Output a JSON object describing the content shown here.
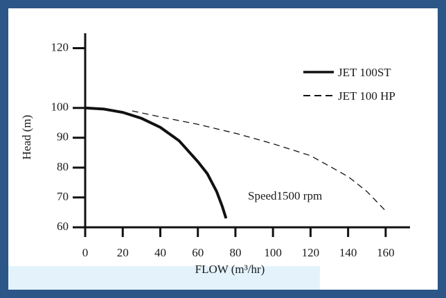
{
  "chart_data": {
    "type": "line",
    "y_label": "Head (m)",
    "x_label": "FLOW (m³/hr)",
    "annotation": "Speed1500 rpm",
    "xlim": [
      0,
      170
    ],
    "xticks": [
      0,
      20,
      40,
      60,
      80,
      100,
      120,
      140,
      160
    ],
    "ylim": [
      60,
      125
    ],
    "yticks": [
      60,
      70,
      80,
      90,
      100,
      120
    ],
    "legend": "upper right",
    "series": [
      {
        "name": "JET 100ST",
        "color": "#111111",
        "style": "solid",
        "x": [
          0,
          10,
          20,
          30,
          40,
          50,
          60,
          65,
          70,
          73,
          75
        ],
        "values": [
          100,
          99.6,
          98.5,
          96.5,
          93.5,
          89,
          82,
          78,
          72,
          67,
          63
        ]
      },
      {
        "name": "JET 100 HP",
        "color": "#111111",
        "style": "dashed",
        "x": [
          25,
          40,
          60,
          80,
          100,
          120,
          140,
          150,
          160
        ],
        "values": [
          99,
          97,
          94.5,
          91.5,
          88,
          84,
          77,
          72,
          65.5
        ]
      }
    ]
  }
}
